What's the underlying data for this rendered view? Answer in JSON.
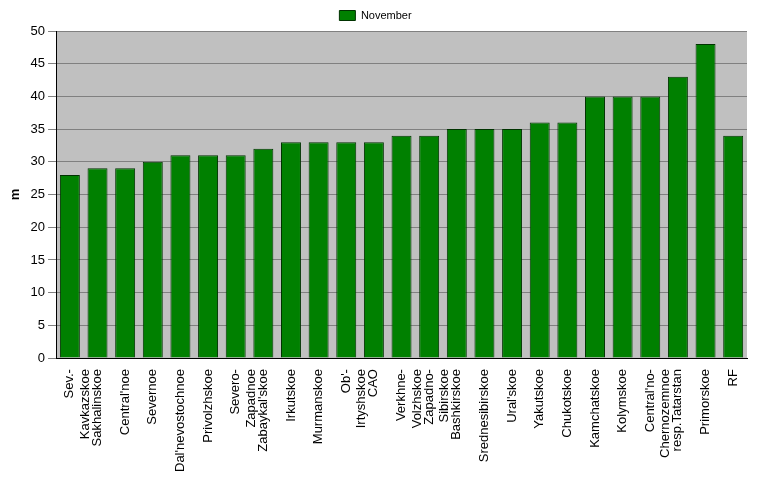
{
  "chart_data": {
    "type": "bar",
    "y_label": "m",
    "categories": [
      "Sev.-Kavkazskoe",
      "Sakhalinskoe",
      "Central'noe",
      "Severnoe",
      "Dal'nevostochnoe",
      "Privolzhskoe",
      "Severo-Zapadnoe",
      "Zabaykal'skoe",
      "Irkutskoe",
      "Murmanskoe",
      "Ob'-Irtyshskoe",
      "CAO",
      "Verkhne-Volzhskoe",
      "Zapadno-Sibirskoe",
      "Bashkirskoe",
      "Srednesibirskoe",
      "Ural'skoe",
      "Yakutskoe",
      "Chukotskoe",
      "Kamchatskoe",
      "Kolymskoe",
      "Central'no-Chernozemnoe",
      "resp.Tatarstan",
      "Primorskoe",
      "RF"
    ],
    "series": [
      {
        "name": "November",
        "color": "#008000",
        "values": [
          28,
          29,
          29,
          30,
          31,
          31,
          31,
          32,
          33,
          33,
          33,
          33,
          34,
          34,
          35,
          35,
          35,
          36,
          36,
          40,
          40,
          40,
          43,
          48,
          34
        ]
      }
    ],
    "ylim": [
      0,
      50
    ],
    "yticks": [
      0,
      5,
      10,
      15,
      20,
      25,
      30,
      35,
      40,
      45,
      50
    ],
    "grid": true,
    "legend": "top"
  }
}
